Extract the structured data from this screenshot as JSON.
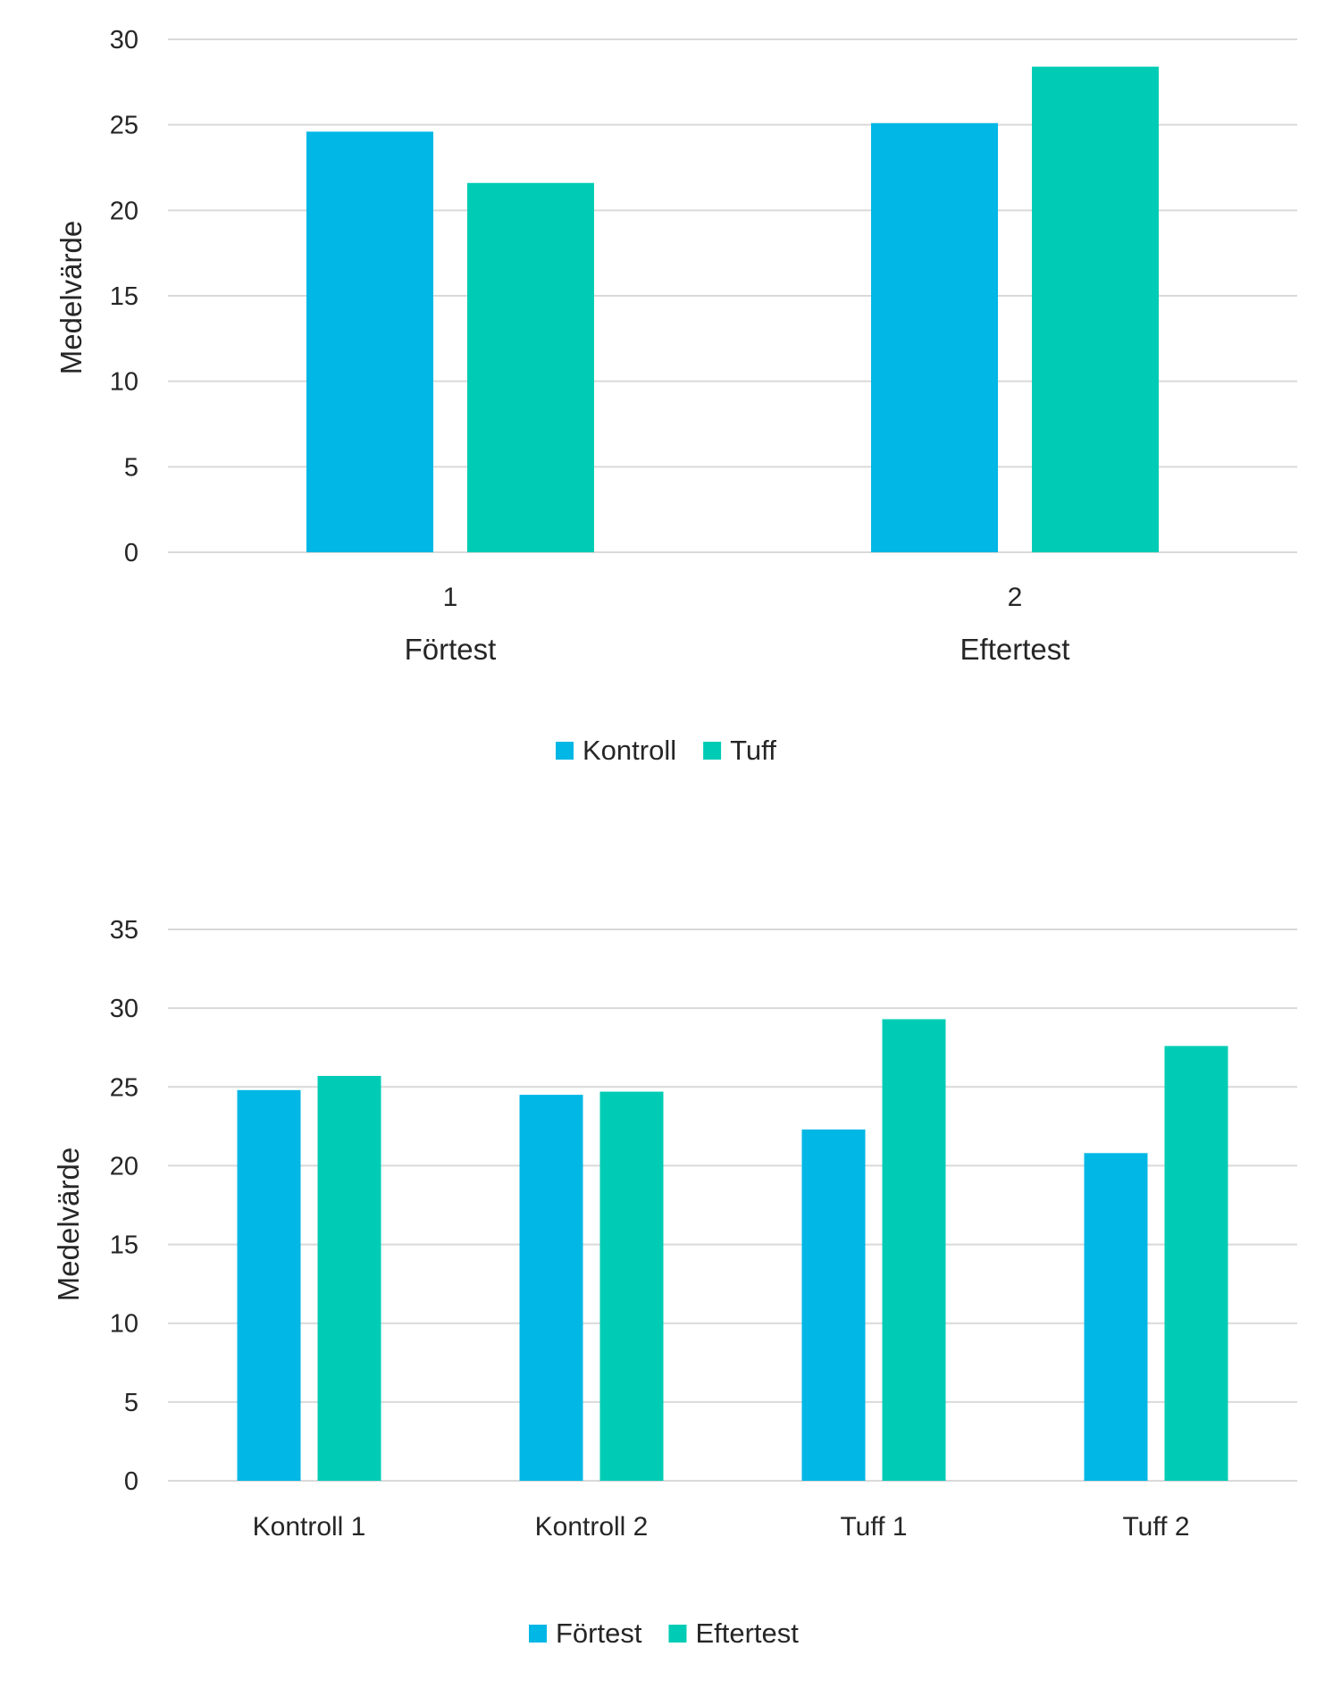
{
  "colors": {
    "Kontroll": "#00b7e5",
    "Tuff": "#00ccb5",
    "Förtest": "#00b7e5",
    "Eftertest": "#00ccb5"
  },
  "chart_data": [
    {
      "type": "bar",
      "categories": [
        "1",
        "2"
      ],
      "group_labels": [
        "Förtest",
        "Eftertest"
      ],
      "series": [
        {
          "name": "Kontroll",
          "values": [
            24.6,
            25.1
          ]
        },
        {
          "name": "Tuff",
          "values": [
            21.6,
            28.4
          ]
        }
      ],
      "ylabel": "Medelvärde",
      "ylim": [
        0,
        30
      ],
      "yticks": [
        0,
        5,
        10,
        15,
        20,
        25,
        30
      ],
      "grid": true,
      "legend": "bottom"
    },
    {
      "type": "bar",
      "categories": [
        "Kontroll 1",
        "Kontroll 2",
        "Tuff 1",
        "Tuff 2"
      ],
      "series": [
        {
          "name": "Förtest",
          "values": [
            24.8,
            24.5,
            22.3,
            20.8
          ]
        },
        {
          "name": "Eftertest",
          "values": [
            25.7,
            24.7,
            29.3,
            27.6
          ]
        }
      ],
      "ylabel": "Medelvärde",
      "ylim": [
        0,
        35
      ],
      "yticks": [
        0,
        5,
        10,
        15,
        20,
        25,
        30,
        35
      ],
      "grid": true,
      "legend": "bottom"
    }
  ]
}
